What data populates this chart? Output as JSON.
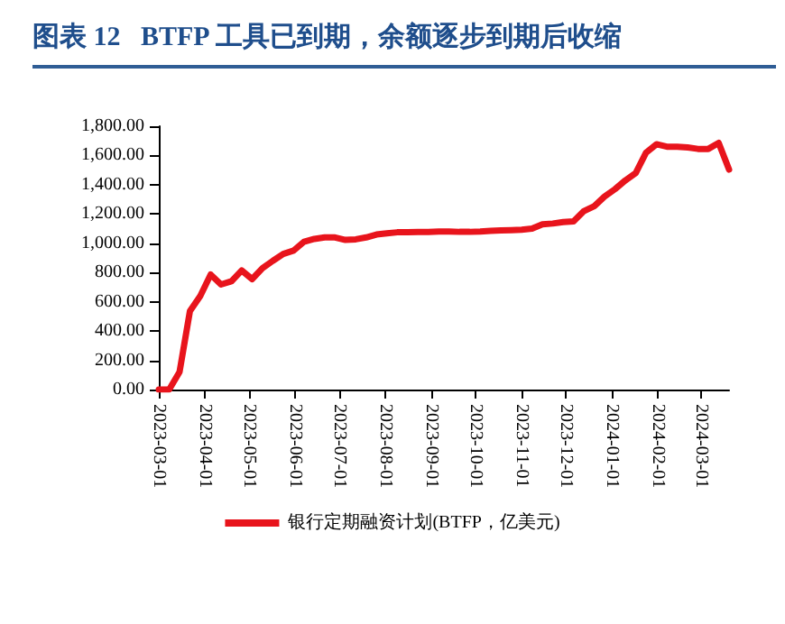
{
  "chart_data": {
    "type": "line",
    "title": "图表 12   BTFP 工具已到期，余额逐步到期后收缩",
    "x": [
      "2023-03-01",
      "2023-03-08",
      "2023-03-15",
      "2023-03-22",
      "2023-03-29",
      "2023-04-05",
      "2023-04-12",
      "2023-04-19",
      "2023-04-26",
      "2023-05-03",
      "2023-05-10",
      "2023-05-17",
      "2023-05-24",
      "2023-05-31",
      "2023-06-07",
      "2023-06-14",
      "2023-06-21",
      "2023-06-28",
      "2023-07-05",
      "2023-07-12",
      "2023-07-19",
      "2023-07-26",
      "2023-08-02",
      "2023-08-09",
      "2023-08-16",
      "2023-08-23",
      "2023-08-30",
      "2023-09-06",
      "2023-09-13",
      "2023-09-20",
      "2023-09-27",
      "2023-10-04",
      "2023-10-11",
      "2023-10-18",
      "2023-10-25",
      "2023-11-01",
      "2023-11-08",
      "2023-11-15",
      "2023-11-22",
      "2023-11-29",
      "2023-12-06",
      "2023-12-13",
      "2023-12-20",
      "2023-12-27",
      "2024-01-03",
      "2024-01-10",
      "2024-01-17",
      "2024-01-24",
      "2024-01-31",
      "2024-02-07",
      "2024-02-14",
      "2024-02-21",
      "2024-02-28",
      "2024-03-06",
      "2024-03-13",
      "2024-03-20"
    ],
    "series": [
      {
        "name": "银行定期融资计划(BTFP，亿美元)",
        "color": "#e8141c",
        "values": [
          0,
          0,
          120,
          536,
          640,
          786,
          718,
          740,
          814,
          755,
          830,
          880,
          927,
          950,
          1010,
          1030,
          1040,
          1040,
          1023,
          1027,
          1040,
          1060,
          1068,
          1075,
          1075,
          1077,
          1077,
          1080,
          1080,
          1078,
          1078,
          1080,
          1085,
          1088,
          1090,
          1093,
          1100,
          1130,
          1135,
          1145,
          1150,
          1220,
          1254,
          1320,
          1370,
          1430,
          1480,
          1620,
          1677,
          1660,
          1660,
          1655,
          1645,
          1645,
          1686,
          1504
        ]
      }
    ],
    "xlim": [
      "2023-03-01",
      "2024-03-20"
    ],
    "xticks": [
      "2023-03-01",
      "2023-04-01",
      "2023-05-01",
      "2023-06-01",
      "2023-07-01",
      "2023-08-01",
      "2023-09-01",
      "2023-10-01",
      "2023-11-01",
      "2023-12-01",
      "2024-01-01",
      "2024-02-01",
      "2024-03-01"
    ],
    "ylim": [
      0,
      1800
    ],
    "yticks": [
      {
        "value": 0,
        "label": "0.00"
      },
      {
        "value": 200,
        "label": "200.00"
      },
      {
        "value": 400,
        "label": "400.00"
      },
      {
        "value": 600,
        "label": "600.00"
      },
      {
        "value": 800,
        "label": "800.00"
      },
      {
        "value": 1000,
        "label": "1,000.00"
      },
      {
        "value": 1200,
        "label": "1,200.00"
      },
      {
        "value": 1400,
        "label": "1,400.00"
      },
      {
        "value": 1600,
        "label": "1,600.00"
      },
      {
        "value": 1800,
        "label": "1,800.00"
      }
    ],
    "grid": false,
    "legend": "bottom",
    "marker": "none",
    "line_style": "solid"
  }
}
